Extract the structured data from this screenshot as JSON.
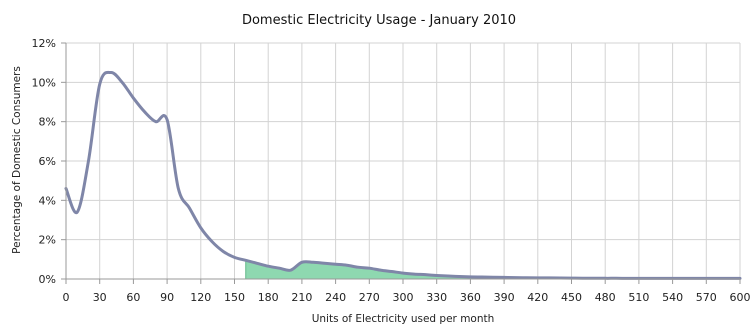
{
  "chart_data": {
    "type": "line",
    "title": "Domestic Electricity Usage - January 2010",
    "xlabel": "Units of Electricity used per month",
    "ylabel": "Percentage of Domestic Consumers",
    "xlim": [
      0,
      600
    ],
    "ylim": [
      0,
      12
    ],
    "x_ticks": [
      0,
      30,
      60,
      90,
      120,
      150,
      180,
      210,
      240,
      270,
      300,
      330,
      360,
      390,
      420,
      450,
      480,
      510,
      540,
      570,
      600
    ],
    "y_ticks": [
      {
        "value": 0,
        "label": "0%"
      },
      {
        "value": 2,
        "label": "2%"
      },
      {
        "value": 4,
        "label": "4%"
      },
      {
        "value": 6,
        "label": "6%"
      },
      {
        "value": 8,
        "label": "8%"
      },
      {
        "value": 10,
        "label": "10%"
      },
      {
        "value": 12,
        "label": "12%"
      }
    ],
    "grid": true,
    "line_color": "#7f86a8",
    "fill_color": "#8ed8b0",
    "fill_edge_color": "#63b98a",
    "shaded_from_x": 160,
    "series": [
      {
        "x": [
          0,
          10,
          20,
          30,
          40,
          50,
          60,
          70,
          80,
          90,
          100,
          110,
          120,
          130,
          140,
          150,
          160,
          170,
          180,
          190,
          200,
          210,
          220,
          230,
          240,
          250,
          260,
          270,
          280,
          290,
          300,
          310,
          320,
          330,
          340,
          350,
          360,
          370,
          380,
          390,
          400,
          410,
          420,
          430,
          440,
          450,
          460,
          470,
          480,
          490,
          500,
          510,
          520,
          530,
          540,
          550,
          560,
          570,
          580,
          590,
          600
        ],
        "y": [
          4.6,
          3.4,
          6.0,
          9.9,
          10.5,
          10.0,
          9.2,
          8.5,
          8.0,
          8.1,
          4.6,
          3.6,
          2.6,
          1.9,
          1.4,
          1.1,
          0.95,
          0.8,
          0.65,
          0.55,
          0.45,
          0.85,
          0.85,
          0.8,
          0.75,
          0.7,
          0.6,
          0.55,
          0.45,
          0.38,
          0.3,
          0.25,
          0.22,
          0.18,
          0.15,
          0.13,
          0.11,
          0.1,
          0.09,
          0.08,
          0.07,
          0.065,
          0.06,
          0.055,
          0.05,
          0.045,
          0.04,
          0.04,
          0.035,
          0.035,
          0.03,
          0.03,
          0.03,
          0.03,
          0.03,
          0.03,
          0.03,
          0.03,
          0.03,
          0.03,
          0.03
        ]
      }
    ]
  }
}
